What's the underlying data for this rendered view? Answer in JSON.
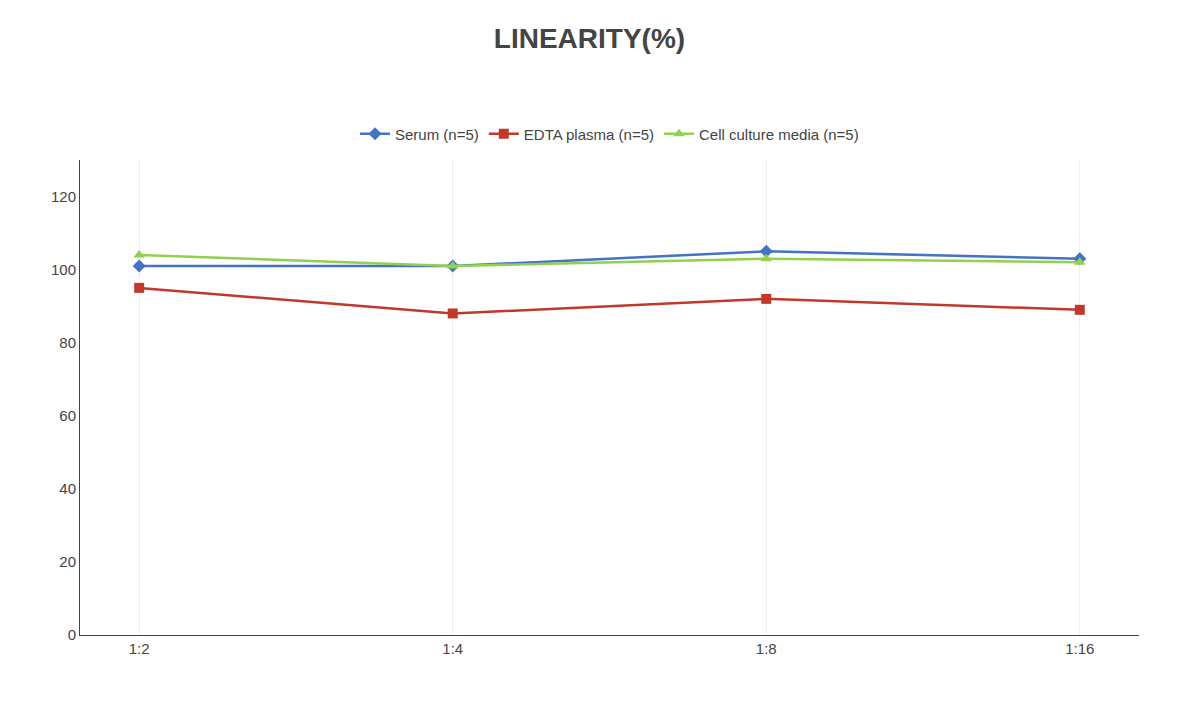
{
  "chart_data": {
    "type": "line",
    "title": "LINEARITY(%)",
    "categories": [
      "1:2",
      "1:4",
      "1:8",
      "1:16"
    ],
    "series": [
      {
        "name": "Serum (n=5)",
        "color": "#4472C4",
        "marker": "diamond",
        "values": [
          101,
          101,
          105,
          103
        ]
      },
      {
        "name": "EDTA plasma (n=5)",
        "color": "#C0392B",
        "marker": "square",
        "values": [
          95,
          88,
          92,
          89
        ]
      },
      {
        "name": "Cell culture media (n=5)",
        "color": "#92D050",
        "marker": "triangle",
        "values": [
          104,
          101,
          103,
          102
        ]
      }
    ],
    "ylim": [
      0,
      130
    ],
    "yticks": [
      0,
      20,
      40,
      60,
      80,
      100,
      120
    ],
    "grid": "x",
    "legend": "top"
  }
}
